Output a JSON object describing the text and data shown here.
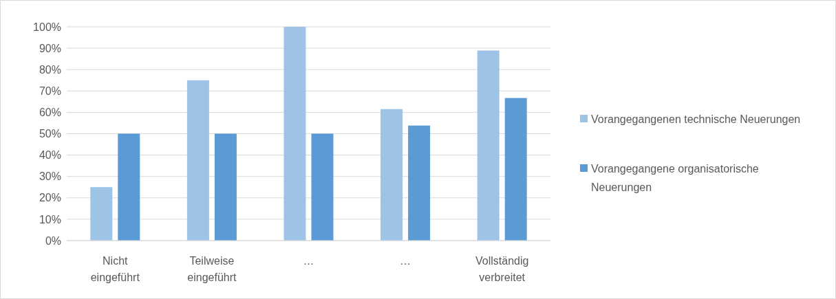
{
  "chart_data": {
    "type": "bar",
    "categories": [
      "Nicht eingeführt",
      "Teilweise eingeführt",
      "…",
      "…",
      "Vollständig verbreitet"
    ],
    "series": [
      {
        "name": "Vorangegangenen technische Neuerungen",
        "color": "#9dc3e6",
        "values": [
          25,
          75,
          100,
          61.5,
          88.9
        ]
      },
      {
        "name": "Vorangegangene organisatorische Neuerungen",
        "color": "#5b9bd5",
        "values": [
          50,
          50,
          50,
          53.8,
          66.7
        ]
      }
    ],
    "ylim": [
      0,
      100
    ],
    "yticks": [
      {
        "value": 0,
        "label": "0%"
      },
      {
        "value": 10,
        "label": "10%"
      },
      {
        "value": 20,
        "label": "20%"
      },
      {
        "value": 30,
        "label": "30%"
      },
      {
        "value": 40,
        "label": "40%"
      },
      {
        "value": 50,
        "label": "50%"
      },
      {
        "value": 60,
        "label": "60%"
      },
      {
        "value": 70,
        "label": "70%"
      },
      {
        "value": 80,
        "label": "80%"
      },
      {
        "value": 90,
        "label": "90%"
      },
      {
        "value": 100,
        "label": "100%"
      }
    ],
    "grid": "y",
    "legend": "right"
  }
}
